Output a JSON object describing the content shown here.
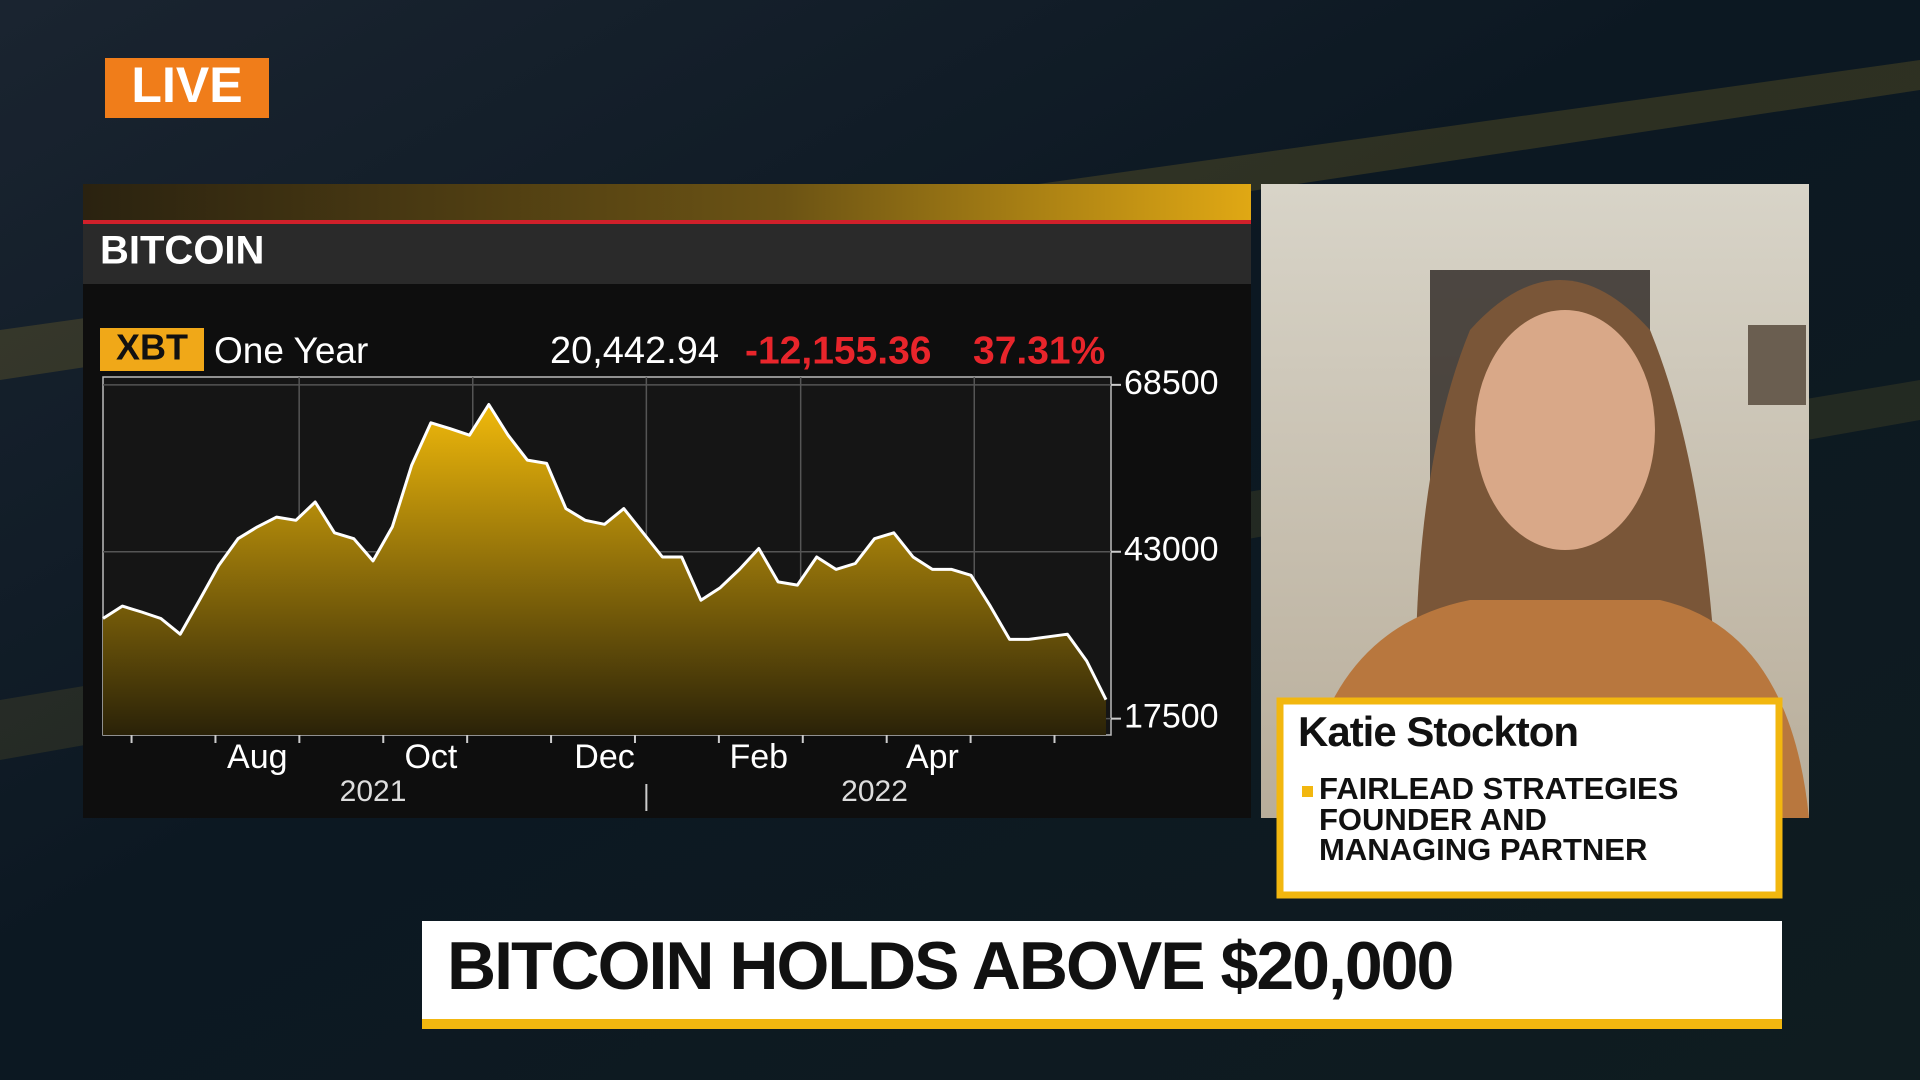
{
  "live_label": "LIVE",
  "guest": {
    "name": "Katie Stockton",
    "title_lines": [
      "FAIRLEAD STRATEGIES",
      "FOUNDER AND",
      "MANAGING PARTNER"
    ]
  },
  "headline": "BITCOIN HOLDS ABOVE $20,000",
  "chart_data": {
    "type": "area",
    "title": "BITCOIN",
    "ticker": "XBT",
    "period": "One Year",
    "last": "20,442.94",
    "change": "-12,155.36",
    "change_pct": "37.31%",
    "categories": [
      null,
      null,
      null,
      null,
      null,
      null,
      null,
      null,
      "Aug",
      null,
      null,
      null,
      null,
      null,
      null,
      null,
      null,
      "Oct",
      null,
      null,
      null,
      null,
      null,
      null,
      null,
      null,
      "Dec",
      null,
      null,
      null,
      null,
      null,
      null,
      null,
      "Feb",
      null,
      null,
      null,
      null,
      null,
      null,
      null,
      null,
      "Apr",
      null,
      null,
      null,
      null,
      null,
      null,
      null,
      null,
      null
    ],
    "x_year_labels": [
      null,
      null,
      null,
      null,
      null,
      null,
      null,
      null,
      null,
      null,
      null,
      null,
      null,
      null,
      "2021",
      null,
      null,
      null,
      null,
      null,
      null,
      null,
      null,
      null,
      null,
      null,
      null,
      null,
      null,
      null,
      null,
      null,
      null,
      null,
      null,
      null,
      null,
      null,
      null,
      null,
      "2022",
      null,
      null,
      null,
      null,
      null,
      null,
      null,
      null,
      null,
      null,
      null,
      null
    ],
    "values": [
      32800,
      34700,
      33800,
      32800,
      30400,
      35600,
      40900,
      45000,
      46800,
      48300,
      47800,
      50600,
      45900,
      45000,
      41600,
      46800,
      56200,
      62700,
      61800,
      60800,
      65500,
      60800,
      57000,
      56500,
      49600,
      47800,
      47200,
      49600,
      45900,
      42200,
      42200,
      35600,
      37500,
      40300,
      43500,
      38400,
      37900,
      42200,
      40300,
      41200,
      45000,
      45900,
      42200,
      40300,
      40300,
      39400,
      34700,
      29600,
      29600,
      30000,
      30400,
      26300,
      20400
    ],
    "ylim": [
      15000,
      69700
    ],
    "yticks": [
      17500,
      43000,
      68500
    ],
    "grid": true,
    "color": "#e6b416",
    "line_color": "#ffffff"
  }
}
